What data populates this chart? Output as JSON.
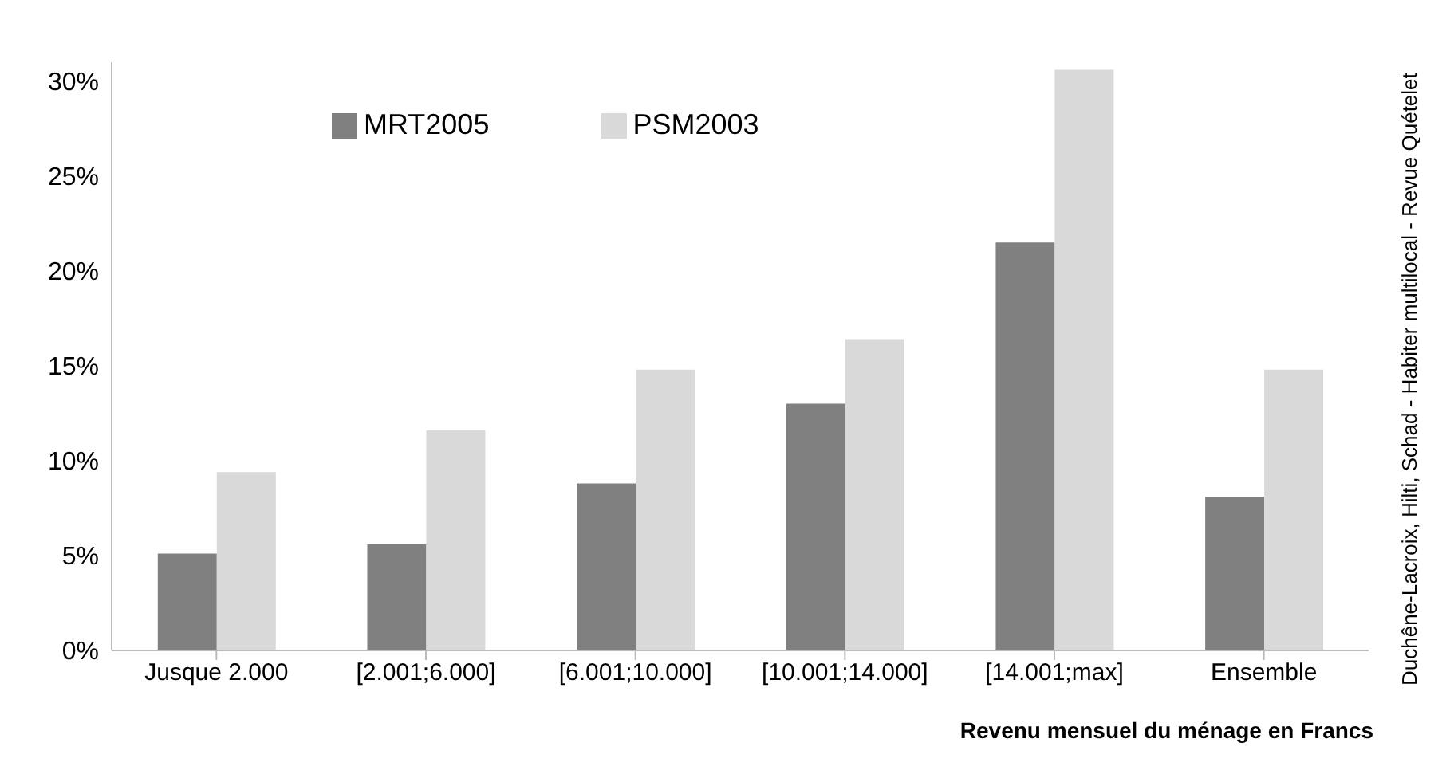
{
  "chart_data": {
    "type": "bar",
    "xlabel": "Revenu mensuel du ménage en Francs",
    "categories": [
      "Jusque 2.000",
      "[2.001;6.000]",
      "[6.001;10.000]",
      "[10.001;14.000]",
      "[14.001;max]",
      "Ensemble"
    ],
    "series": [
      {
        "name": "MRT2005",
        "color": "#808080",
        "values": [
          5.1,
          5.6,
          8.8,
          13.0,
          21.5,
          8.1
        ]
      },
      {
        "name": "PSM2003",
        "color": "#d9d9d9",
        "values": [
          9.4,
          11.6,
          14.8,
          16.4,
          30.6,
          14.8
        ]
      }
    ],
    "ylim": [
      0,
      31
    ],
    "yticks": [
      {
        "value": 0,
        "label": "0%"
      },
      {
        "value": 5,
        "label": "5%"
      },
      {
        "value": 10,
        "label": "10%"
      },
      {
        "value": 15,
        "label": "15%"
      },
      {
        "value": 20,
        "label": "20%"
      },
      {
        "value": 25,
        "label": "25%"
      },
      {
        "value": 30,
        "label": "30%"
      }
    ],
    "legend": "top left",
    "annotations": [
      "Duchêne-Lacroix, Hilti, Schad - Habiter multilocal - Revue Quételet"
    ]
  }
}
